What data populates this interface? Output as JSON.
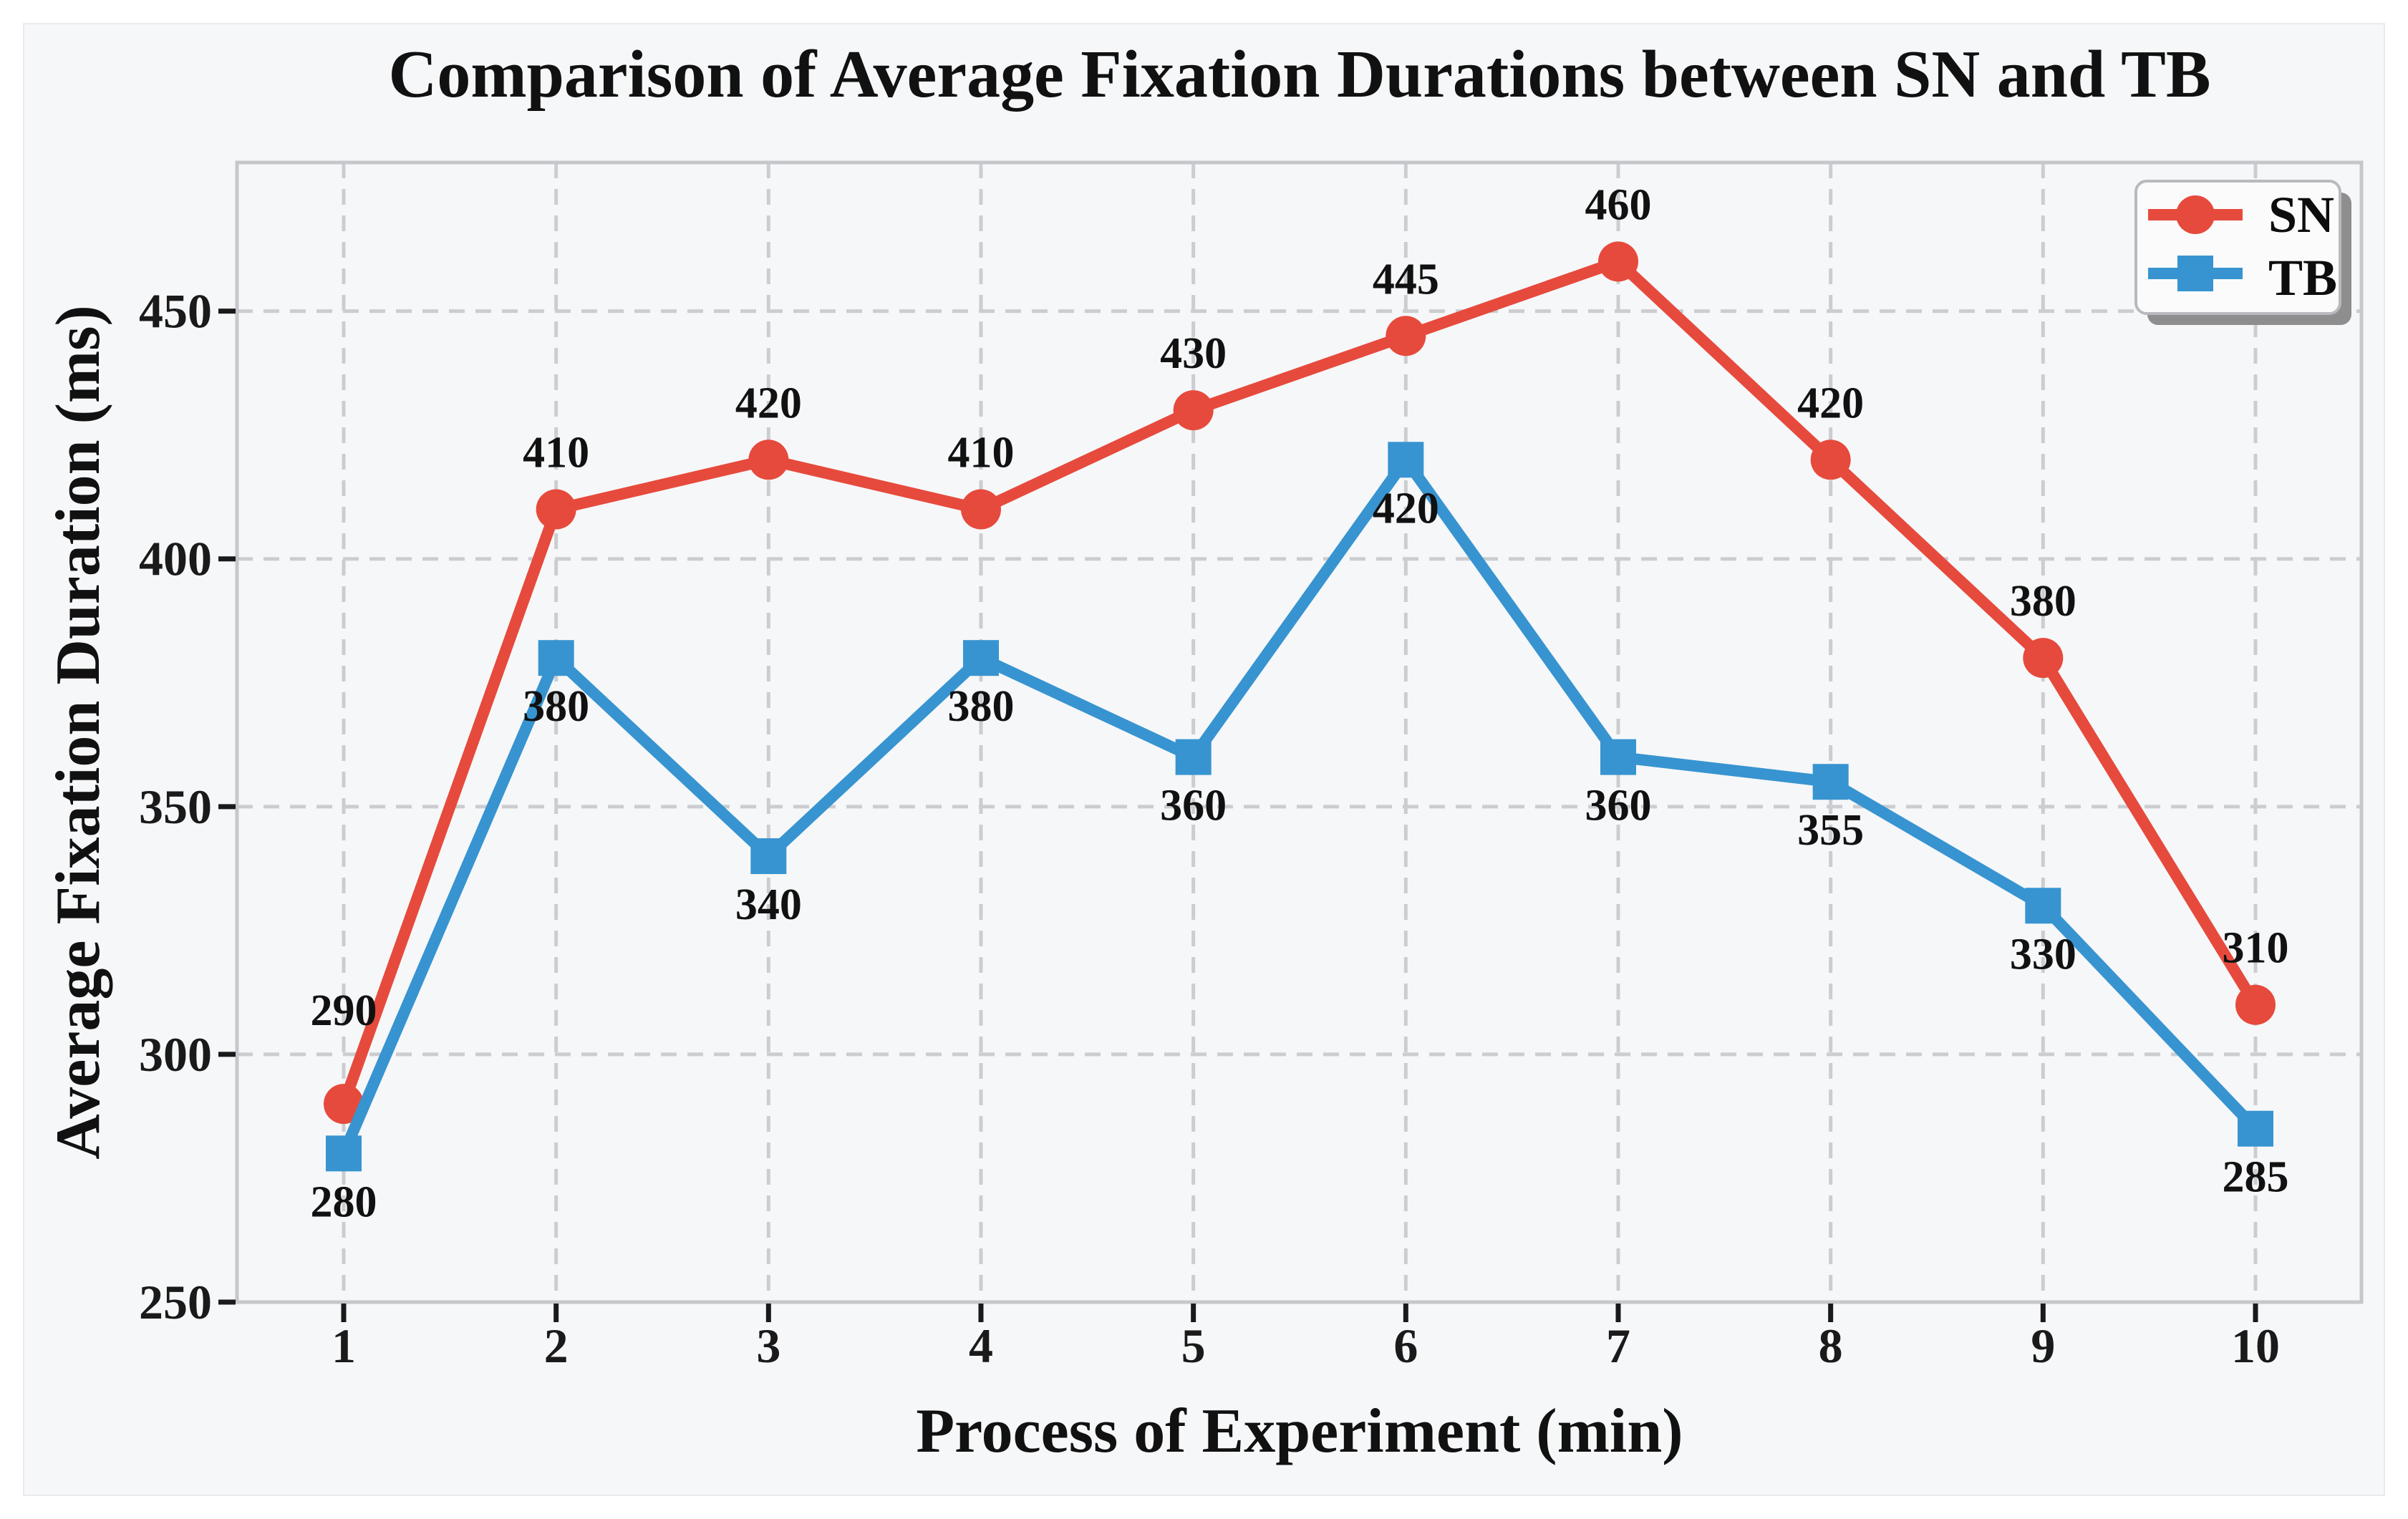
{
  "chart_data": {
    "type": "line",
    "title": "Comparison of Average Fixation Durations between SN and TB",
    "xlabel": "Process of Experiment (min)",
    "ylabel": "Average Fixation Duration (ms)",
    "x": [
      1,
      2,
      3,
      4,
      5,
      6,
      7,
      8,
      9,
      10
    ],
    "x_ticklabels": [
      "1",
      "2",
      "3",
      "4",
      "5",
      "6",
      "7",
      "8",
      "9",
      "10"
    ],
    "y_ticks": [
      250,
      300,
      350,
      400,
      450
    ],
    "y_ticklabels": [
      "250",
      "300",
      "350",
      "400",
      "450"
    ],
    "ylim": [
      250,
      480
    ],
    "grid": {
      "show": true,
      "style": "dashed"
    },
    "legend": {
      "position": "upper-right",
      "entries": [
        "SN",
        "TB"
      ]
    },
    "series": [
      {
        "name": "SN",
        "color": "#e64a3c",
        "marker": "circle",
        "values": [
          290,
          410,
          420,
          410,
          430,
          445,
          460,
          420,
          380,
          310
        ],
        "data_labels": [
          "290",
          "410",
          "420",
          "410",
          "430",
          "445",
          "460",
          "420",
          "380",
          "310"
        ],
        "label_side": "above"
      },
      {
        "name": "TB",
        "color": "#3794d0",
        "marker": "square",
        "values": [
          280,
          380,
          340,
          380,
          360,
          420,
          360,
          355,
          330,
          285
        ],
        "data_labels": [
          "280",
          "380",
          "340",
          "380",
          "360",
          "420",
          "360",
          "355",
          "330",
          "285"
        ],
        "label_side": "below"
      }
    ]
  },
  "styles": {
    "figure_background": "#f6f7f9",
    "page_background": "#ffffff",
    "grid_color": "#cbcdd1",
    "spine_color": "#c5c7ca",
    "tick_color": "#1a1a1a",
    "text_color": "#111111",
    "legend_background": "#fbfbfc",
    "legend_border": "#b9babd",
    "legend_shadow": "#8e8e8e"
  }
}
